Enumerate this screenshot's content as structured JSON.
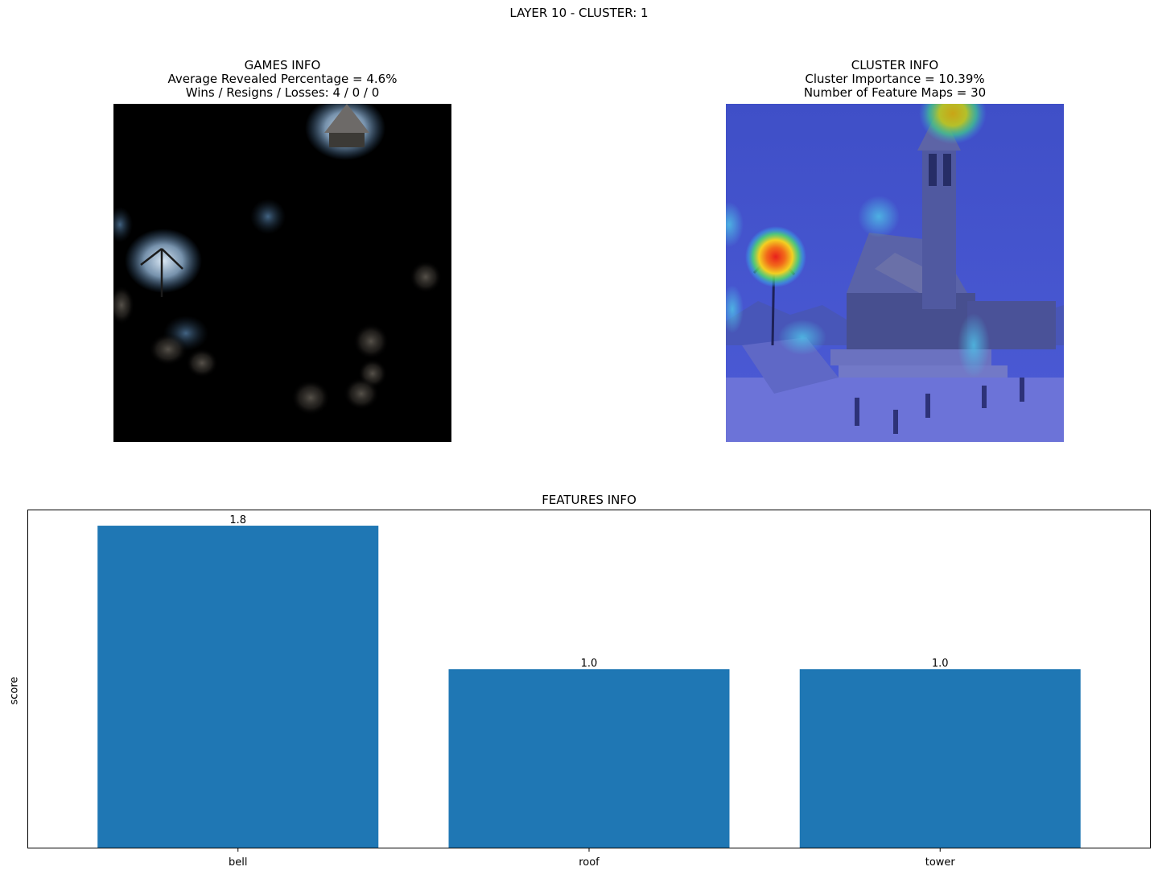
{
  "figure": {
    "suptitle": "LAYER 10 - CLUSTER: 1"
  },
  "games_info": {
    "title": "GAMES INFO",
    "line1": "Average Revealed Percentage = 4.6%",
    "line2": "Wins / Resigns / Losses: 4 / 0 / 0"
  },
  "cluster_info": {
    "title": "CLUSTER INFO",
    "line1": "Cluster Importance = 10.39%",
    "line2": "Number of Feature Maps = 30"
  },
  "chart_data": {
    "type": "bar",
    "title": "FEATURES INFO",
    "xlabel": "",
    "ylabel": "score",
    "categories": [
      "bell",
      "roof",
      "tower"
    ],
    "values": [
      1.8,
      1.0,
      1.0
    ],
    "data_labels": [
      "1.8",
      "1.0",
      "1.0"
    ],
    "ylim": [
      0,
      1.89
    ],
    "y_ticks_visible": false,
    "grid": false,
    "bar_color": "#1f77b4"
  }
}
